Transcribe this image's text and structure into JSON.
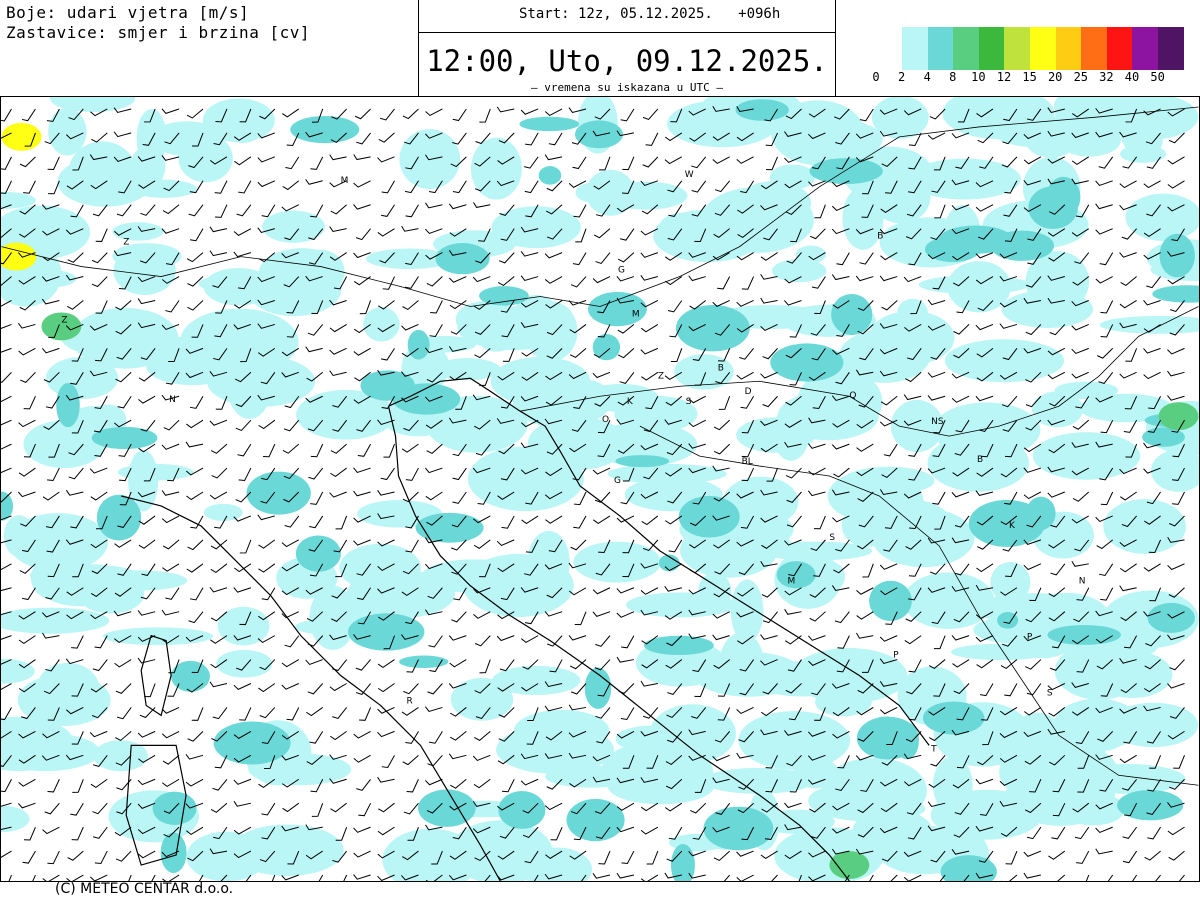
{
  "header": {
    "line1": "Boje: udari vjetra [m/s]",
    "line2": "Zastavice: smjer i brzina [cv]",
    "start": "Start: 12z, 05.12.2025.   +096h",
    "valid": "12:00, Uto, 09.12.2025.",
    "utc_note": "– vremena su iskazana u UTC –"
  },
  "legend": {
    "colors": [
      "#baf6f6",
      "#6bd8d8",
      "#5ace80",
      "#3cb83c",
      "#c0e23c",
      "#ffff14",
      "#ffcc14",
      "#ff6e14",
      "#ff1414",
      "#8c14a0",
      "#501464"
    ],
    "labels": [
      "0",
      "2",
      "4",
      "8",
      "10",
      "12",
      "15",
      "20",
      "25",
      "32",
      "40",
      "50"
    ]
  },
  "map": {
    "labels": [
      "M",
      "W",
      "Z",
      "G",
      "B",
      "M",
      "Z",
      "B",
      "D",
      "K",
      "S",
      "O",
      "Q",
      "NS",
      "BL",
      "G",
      "B",
      "K",
      "S",
      "M",
      "N",
      "P",
      "P",
      "S",
      "T",
      "R",
      "N",
      "Z"
    ]
  },
  "footer": "(C) METEO CENTAR d.o.o."
}
